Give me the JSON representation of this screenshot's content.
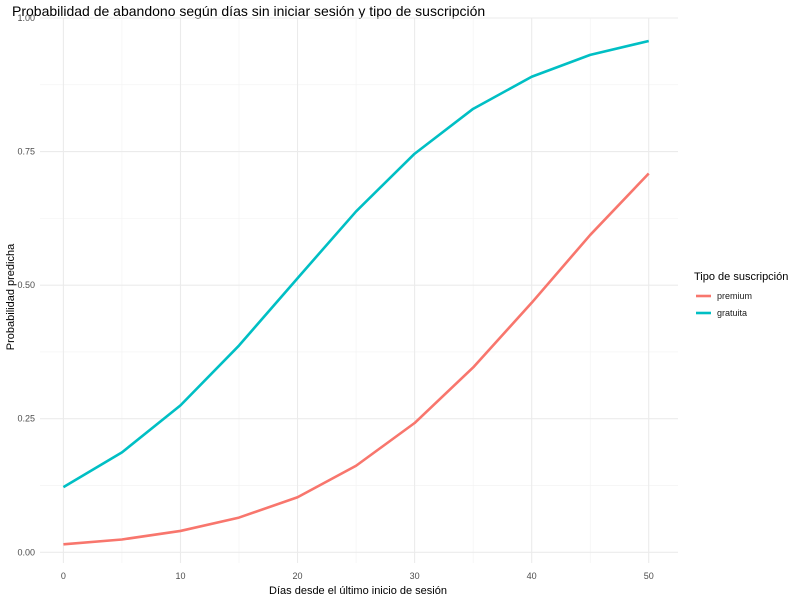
{
  "chart_data": {
    "type": "line",
    "title": "Probabilidad de abandono según días sin iniciar sesión y tipo de suscripción",
    "xlabel": "Días desde el último inicio de sesión",
    "ylabel": "Probabilidad predicha",
    "x": [
      0,
      5,
      10,
      15,
      20,
      25,
      30,
      35,
      40,
      45,
      50
    ],
    "xlim": [
      -2,
      52.5
    ],
    "ylim": [
      -0.02,
      1.0
    ],
    "xticks": [
      0,
      10,
      20,
      30,
      40,
      50
    ],
    "xtick_labels": [
      "0",
      "10",
      "20",
      "30",
      "40",
      "50"
    ],
    "yticks": [
      0,
      0.25,
      0.5,
      0.75,
      1.0
    ],
    "ytick_labels": [
      "0.00",
      "0.25",
      "0.50",
      "0.75",
      "1.00"
    ],
    "grid": true,
    "legend": {
      "title": "Tipo de suscripción",
      "position": "right"
    },
    "series": [
      {
        "name": "premium",
        "color": "#f8766d",
        "values": [
          0.015,
          0.024,
          0.04,
          0.065,
          0.103,
          0.162,
          0.242,
          0.346,
          0.467,
          0.594,
          0.709
        ]
      },
      {
        "name": "gratuita",
        "color": "#00bfc4",
        "values": [
          0.122,
          0.187,
          0.275,
          0.387,
          0.513,
          0.638,
          0.746,
          0.83,
          0.89,
          0.931,
          0.957
        ]
      }
    ]
  }
}
